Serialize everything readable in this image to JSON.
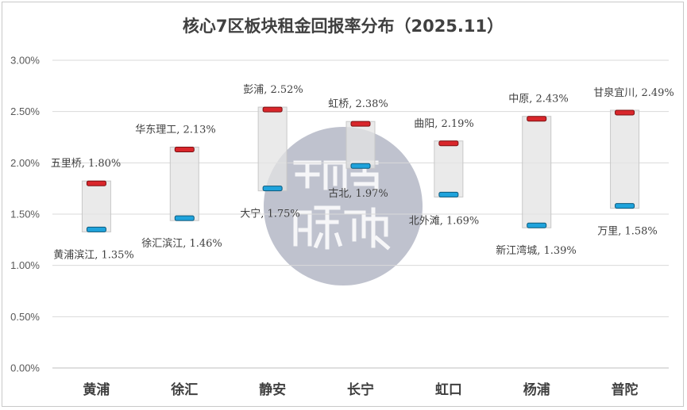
{
  "chart_data": {
    "type": "floating-bar",
    "title": "核心7区板块租金回报率分布（2025.11）",
    "categories": [
      "黄浦",
      "徐汇",
      "静安",
      "长宁",
      "虹口",
      "杨浦",
      "普陀"
    ],
    "ylim": [
      0.0,
      3.0
    ],
    "yticks": [
      "0.00%",
      "0.50%",
      "1.00%",
      "1.50%",
      "2.00%",
      "2.50%",
      "3.00%"
    ],
    "grid": true,
    "series": [
      {
        "name": "",
        "values": [
          1.8,
          2.13,
          2.52,
          2.38,
          2.19,
          2.43,
          2.49
        ],
        "labels": [
          "五里桥, 1.80%",
          "华东理工, 2.13%",
          "彭浦, 2.52%",
          "虹桥, 2.38%",
          "曲阳, 2.19%",
          "中原, 2.43%",
          "甘泉宜川, 2.49%"
        ]
      },
      {
        "name": "",
        "values": [
          1.35,
          1.46,
          1.75,
          1.97,
          1.69,
          1.39,
          1.58
        ],
        "labels": [
          "黄浦滨江, 1.35%",
          "徐汇滨江, 1.46%",
          "大宁, 1.75%",
          "古北, 1.97%",
          "北外滩, 1.69%",
          "新江湾城, 1.39%",
          "万里, 1.58%"
        ]
      }
    ],
    "colors": {
      "high": "#d9262b",
      "low": "#1fa3dc",
      "bar": "#e3e3e3",
      "watermark": "#8a8fa6"
    }
  }
}
